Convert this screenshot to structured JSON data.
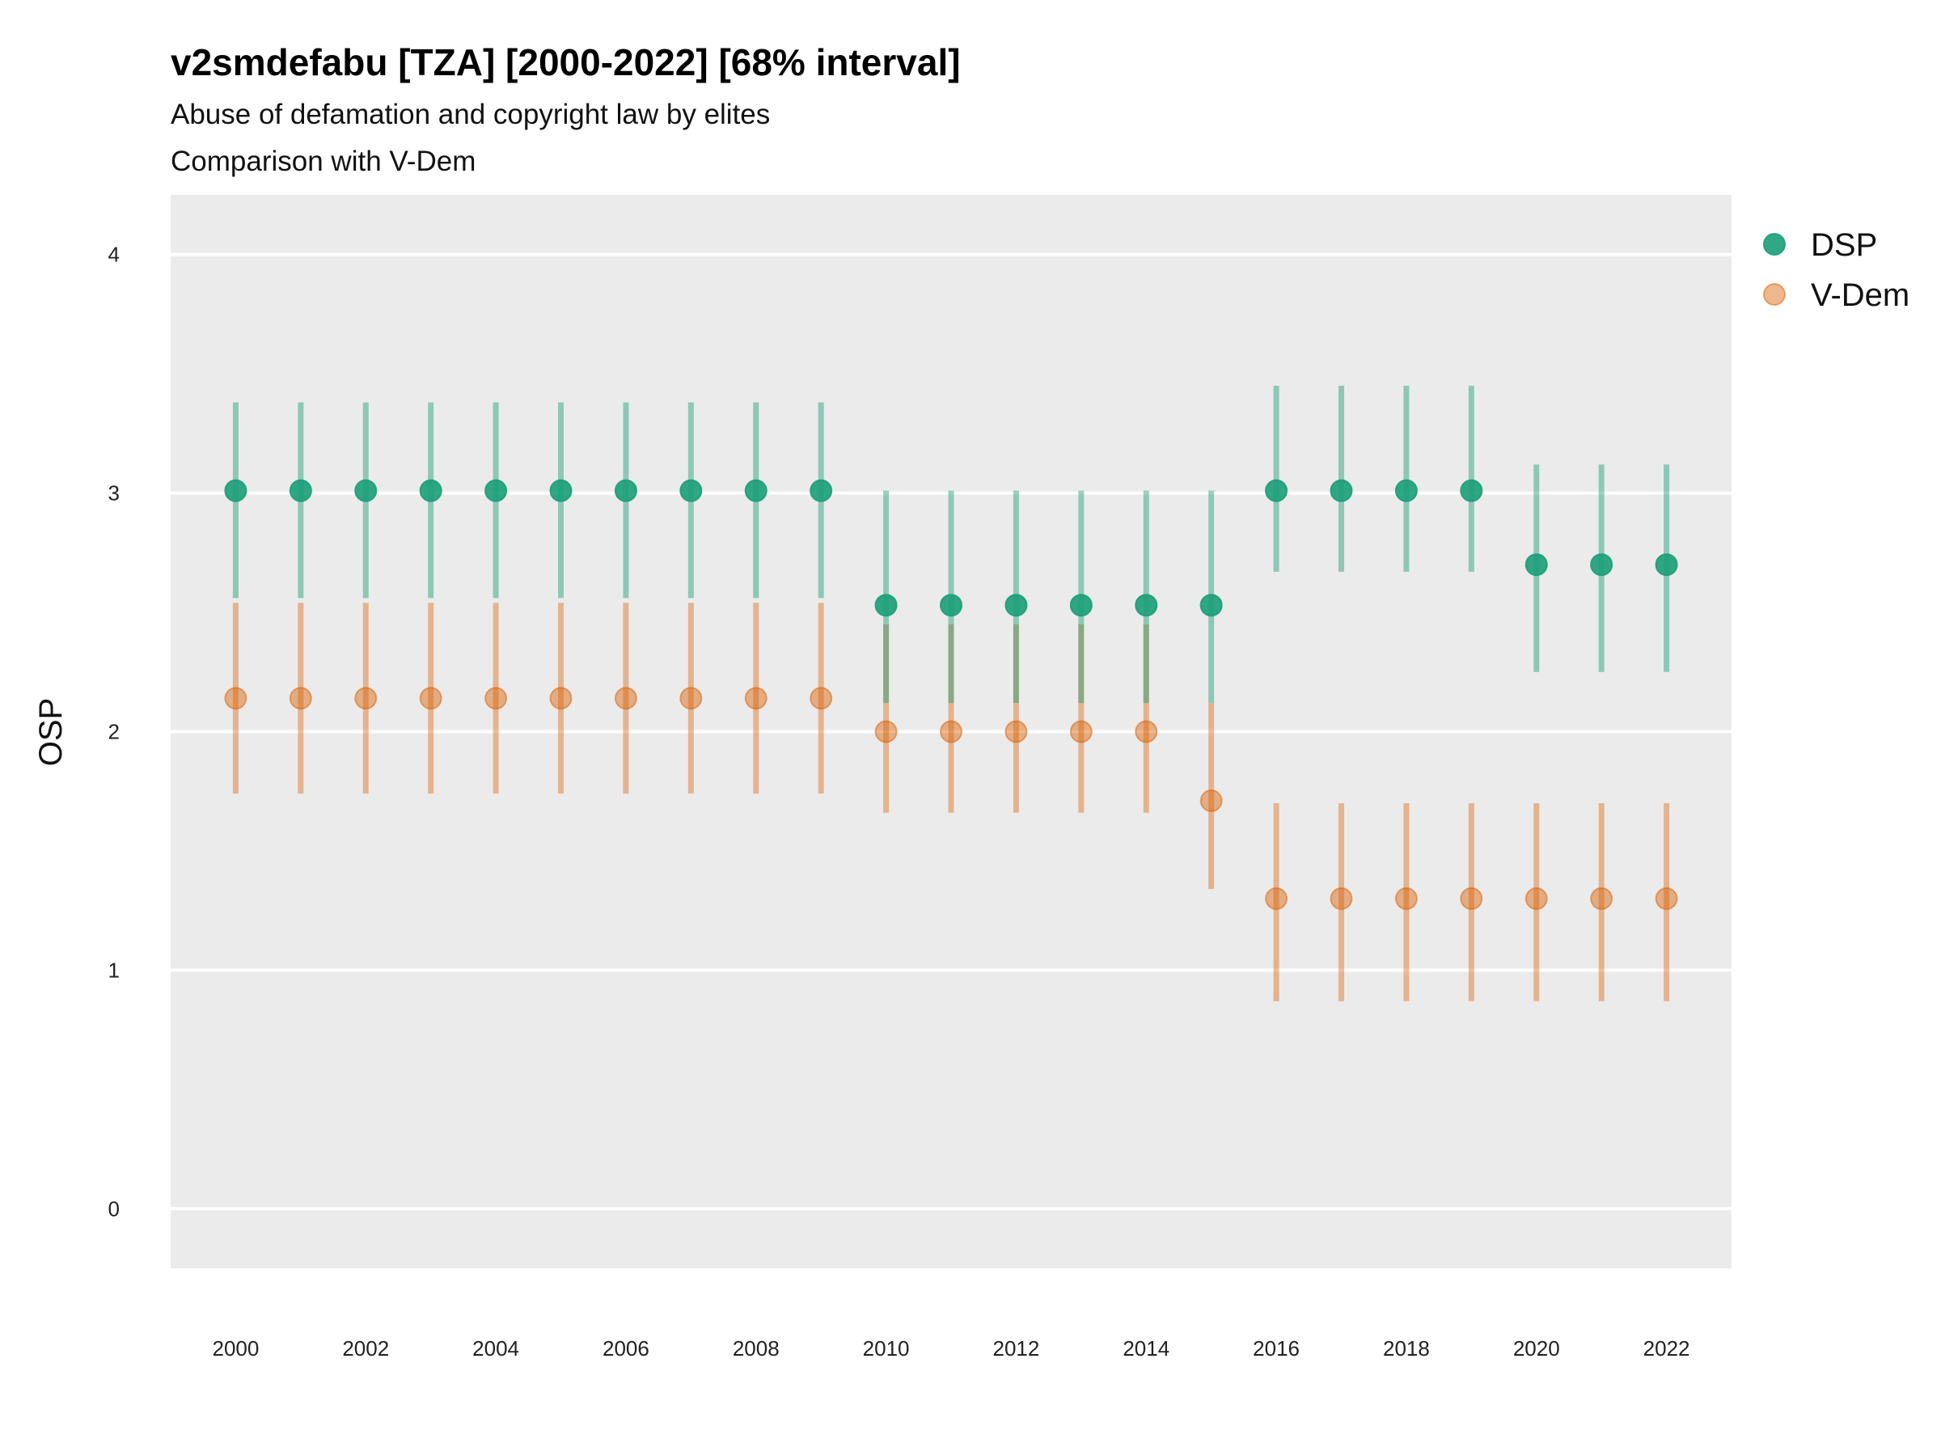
{
  "chart_data": {
    "type": "scatter",
    "title": "v2smdefabu [TZA] [2000-2022] [68% interval]",
    "subtitle": "Abuse of defamation and copyright law by elites",
    "caption_line": "Comparison with V-Dem",
    "ylabel": "OSP",
    "xlabel": "",
    "ylim": [
      -0.25,
      4.25
    ],
    "yticks": [
      "0",
      "1",
      "2",
      "3",
      "4"
    ],
    "xlim": [
      1999.0,
      2023.0
    ],
    "xticks": [
      "2000",
      "2002",
      "2004",
      "2006",
      "2008",
      "2010",
      "2012",
      "2014",
      "2016",
      "2018",
      "2020",
      "2022"
    ],
    "grid": true,
    "legend_position": "right",
    "x": [
      2000,
      2001,
      2002,
      2003,
      2004,
      2005,
      2006,
      2007,
      2008,
      2009,
      2010,
      2011,
      2012,
      2013,
      2014,
      2015,
      2016,
      2017,
      2018,
      2019,
      2020,
      2021,
      2022
    ],
    "series": [
      {
        "name": "DSP",
        "color": "#1b9e77",
        "values": [
          3.01,
          3.01,
          3.01,
          3.01,
          3.01,
          3.01,
          3.01,
          3.01,
          3.01,
          3.01,
          2.53,
          2.53,
          2.53,
          2.53,
          2.53,
          2.53,
          3.01,
          3.01,
          3.01,
          3.01,
          2.7,
          2.7,
          2.7
        ],
        "lower": [
          2.56,
          2.56,
          2.56,
          2.56,
          2.56,
          2.56,
          2.56,
          2.56,
          2.56,
          2.56,
          2.12,
          2.12,
          2.12,
          2.12,
          2.12,
          2.12,
          2.67,
          2.67,
          2.67,
          2.67,
          2.25,
          2.25,
          2.25
        ],
        "upper": [
          3.38,
          3.38,
          3.38,
          3.38,
          3.38,
          3.38,
          3.38,
          3.38,
          3.38,
          3.38,
          3.01,
          3.01,
          3.01,
          3.01,
          3.01,
          3.01,
          3.45,
          3.45,
          3.45,
          3.45,
          3.12,
          3.12,
          3.12
        ]
      },
      {
        "name": "V-Dem",
        "color": "#d95f02",
        "values": [
          2.14,
          2.14,
          2.14,
          2.14,
          2.14,
          2.14,
          2.14,
          2.14,
          2.14,
          2.14,
          2.0,
          2.0,
          2.0,
          2.0,
          2.0,
          1.71,
          1.3,
          1.3,
          1.3,
          1.3,
          1.3,
          1.3,
          1.3
        ],
        "lower": [
          1.74,
          1.74,
          1.74,
          1.74,
          1.74,
          1.74,
          1.74,
          1.74,
          1.74,
          1.74,
          1.66,
          1.66,
          1.66,
          1.66,
          1.66,
          1.34,
          0.87,
          0.87,
          0.87,
          0.87,
          0.87,
          0.87,
          0.87
        ],
        "upper": [
          2.54,
          2.54,
          2.54,
          2.54,
          2.54,
          2.54,
          2.54,
          2.54,
          2.54,
          2.54,
          2.45,
          2.45,
          2.45,
          2.45,
          2.45,
          2.12,
          1.7,
          1.7,
          1.7,
          1.7,
          1.7,
          1.7,
          1.7
        ]
      }
    ]
  }
}
